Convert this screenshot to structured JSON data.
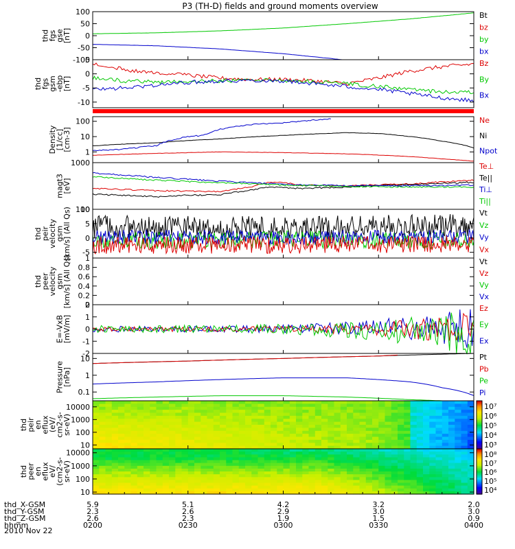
{
  "title": "P3 (TH-D) fields and ground moments overview",
  "date_label": "2010 Nov 22",
  "chart_data": [
    {
      "id": "p1",
      "type": "line",
      "ylabel": [
        "thd",
        "fgs",
        "gse",
        "[nT]"
      ],
      "ylim": [
        -100,
        100
      ],
      "yticks": [
        100,
        50,
        0,
        -50,
        -100
      ],
      "legend": [
        "Bt",
        "bz",
        "by",
        "bx"
      ],
      "series": [
        {
          "name": "by",
          "color": "#00c800",
          "x": [
            0,
            20,
            40,
            60,
            80,
            100,
            120
          ],
          "y": [
            8,
            12,
            20,
            32,
            50,
            70,
            95
          ],
          "noise": 0.3
        },
        {
          "name": "bx",
          "color": "#0000cc",
          "x": [
            0,
            20,
            40,
            60,
            75,
            80,
            100,
            120
          ],
          "y": [
            -36,
            -42,
            -55,
            -75,
            -95,
            -102,
            -102,
            -102
          ],
          "noise": 0.3
        }
      ]
    },
    {
      "id": "p2",
      "type": "line",
      "ylabel": [
        "thd",
        "fgs",
        "gsm",
        "-ebp",
        "[nT]"
      ],
      "ylim": [
        -12,
        5
      ],
      "yticks": [
        5,
        0,
        -5,
        -10
      ],
      "legend": [
        "Bz",
        "By",
        "Bx"
      ],
      "series": [
        {
          "name": "Bz",
          "color": "#dd0000",
          "x": [
            0,
            10,
            20,
            30,
            40,
            50,
            60,
            70,
            80,
            90,
            100,
            110,
            120
          ],
          "y": [
            3.5,
            1.5,
            0.5,
            -0.5,
            -1.5,
            -2.0,
            -2.0,
            -2.5,
            -3.5,
            -1.5,
            1.0,
            2.5,
            3.5
          ],
          "noise": 0.7
        },
        {
          "name": "By",
          "color": "#00c800",
          "x": [
            0,
            10,
            20,
            30,
            40,
            50,
            60,
            70,
            80,
            90,
            100,
            110,
            120
          ],
          "y": [
            -1.5,
            -2.5,
            -2.8,
            -2.8,
            -2.5,
            -2.2,
            -2.3,
            -2.8,
            -3.5,
            -4.5,
            -5.5,
            -6.5,
            -6.5
          ],
          "noise": 0.7
        },
        {
          "name": "Bx",
          "color": "#0000cc",
          "x": [
            0,
            10,
            20,
            30,
            40,
            50,
            60,
            70,
            80,
            90,
            100,
            110,
            120
          ],
          "y": [
            -5.5,
            -5.0,
            -4.0,
            -3.0,
            -2.5,
            -2.3,
            -2.5,
            -3.5,
            -4.5,
            -5.5,
            -7.0,
            -8.5,
            -9.5
          ],
          "noise": 0.7
        }
      ]
    },
    {
      "id": "p3",
      "type": "line",
      "log": true,
      "ylabel": [
        "Density",
        "[1/cc]",
        "[cm-3]"
      ],
      "ylim": [
        0.2,
        200
      ],
      "yticks": [
        100,
        10,
        1
      ],
      "legend": [
        "Ne",
        "Ni",
        "Npot"
      ],
      "series": [
        {
          "name": "Ne",
          "color": "#dd0000",
          "x": [
            0,
            20,
            40,
            60,
            80,
            100,
            110,
            120
          ],
          "y": [
            0.6,
            0.8,
            1.0,
            0.9,
            0.75,
            0.5,
            0.35,
            0.25
          ],
          "noise": 0.02
        },
        {
          "name": "Ni",
          "color": "#000000",
          "x": [
            0,
            20,
            40,
            60,
            80,
            90,
            100,
            110,
            120
          ],
          "y": [
            2.5,
            4.0,
            7.0,
            12,
            18,
            16,
            10,
            5,
            1.8
          ],
          "noise": 0.02
        },
        {
          "name": "Npot",
          "color": "#0000cc",
          "x": [
            0,
            10,
            20,
            25,
            30,
            35,
            40,
            50,
            60,
            70,
            75
          ],
          "y": [
            1.2,
            1.5,
            2.5,
            6,
            10,
            12,
            30,
            60,
            80,
            120,
            150
          ],
          "noise": 0.08
        }
      ]
    },
    {
      "id": "p4",
      "type": "line",
      "log": true,
      "ylabel": [
        "magt3",
        "[eV]"
      ],
      "ylim": [
        100,
        1000
      ],
      "yticks": [
        1000,
        100
      ],
      "legend": [
        "Te⊥",
        "Te||",
        "Ti⊥",
        "Ti||"
      ],
      "series": [
        {
          "name": "Te⊥",
          "color": "#dd0000",
          "x": [
            0,
            20,
            40,
            50,
            55,
            60,
            65,
            80,
            100,
            120
          ],
          "y": [
            280,
            250,
            240,
            300,
            380,
            380,
            330,
            320,
            350,
            420
          ],
          "noise": 0.03
        },
        {
          "name": "Te||",
          "color": "#000000",
          "x": [
            0,
            10,
            20,
            30,
            40,
            50,
            55,
            65,
            80,
            100,
            120
          ],
          "y": [
            210,
            200,
            185,
            200,
            205,
            260,
            300,
            280,
            300,
            340,
            380
          ],
          "noise": 0.03
        },
        {
          "name": "Ti⊥",
          "color": "#0000cc",
          "x": [
            0,
            20,
            40,
            60,
            80,
            100,
            120
          ],
          "y": [
            600,
            480,
            400,
            340,
            320,
            320,
            330
          ],
          "noise": 0.03
        },
        {
          "name": "Ti||",
          "color": "#00c800",
          "x": [
            0,
            20,
            40,
            60,
            80,
            100,
            120
          ],
          "y": [
            500,
            420,
            370,
            330,
            310,
            300,
            300
          ],
          "noise": 0.03
        }
      ]
    },
    {
      "id": "p5",
      "type": "line",
      "ylabel": [
        "thd",
        "peir",
        "velocity",
        "gsm",
        "[km/s] (All Qs)"
      ],
      "ylim": [
        -7,
        10
      ],
      "yticks": [
        10,
        5,
        0,
        -5
      ],
      "legend": [
        "Vt",
        "Vz",
        "Vy",
        "Vx"
      ],
      "series": [
        {
          "name": "Vt",
          "color": "#000000",
          "x": [
            0,
            60,
            120
          ],
          "y": [
            4,
            3.5,
            4.5
          ],
          "noise": 4
        },
        {
          "name": "Vz",
          "color": "#00c800",
          "x": [
            0,
            60,
            120
          ],
          "y": [
            -1,
            -0.5,
            -1
          ],
          "noise": 3
        },
        {
          "name": "Vy",
          "color": "#0000cc",
          "x": [
            0,
            60,
            120
          ],
          "y": [
            0.5,
            0,
            0.5
          ],
          "noise": 2.5
        },
        {
          "name": "Vx",
          "color": "#dd0000",
          "x": [
            0,
            60,
            120
          ],
          "y": [
            -2.5,
            -2.5,
            -2
          ],
          "noise": 3
        }
      ]
    },
    {
      "id": "p6",
      "type": "line",
      "ylabel": [
        "thd",
        "peer",
        "velocity",
        "gsm",
        "[km/s] (All Qs)"
      ],
      "ylim": [
        0,
        1
      ],
      "yticks": [
        1.0,
        0.8,
        0.6,
        0.4,
        0.2,
        0.0
      ],
      "legend": [
        "Vt",
        "Vz",
        "Vy",
        "Vx"
      ],
      "series": []
    },
    {
      "id": "p7",
      "type": "line",
      "ylabel": [
        "E=-VxB",
        "[mV/m]"
      ],
      "ylim": [
        -2,
        2
      ],
      "yticks": [
        2,
        1,
        0,
        -1,
        -2
      ],
      "legend": [
        "Ez",
        "Ey",
        "Ex"
      ],
      "series": [
        {
          "name": "Ex",
          "color": "#0000cc",
          "x": [
            0,
            60,
            100,
            120
          ],
          "y": [
            0,
            0,
            0.1,
            0.1
          ],
          "noise": 0.25,
          "grow": true
        },
        {
          "name": "Ez",
          "color": "#dd0000",
          "x": [
            0,
            60,
            120
          ],
          "y": [
            0,
            0,
            0
          ],
          "noise": 0.2,
          "grow": true
        },
        {
          "name": "Ey",
          "color": "#00c800",
          "x": [
            0,
            60,
            100,
            120
          ],
          "y": [
            0,
            0,
            -0.2,
            -0.4
          ],
          "noise": 0.3,
          "grow": true
        }
      ]
    },
    {
      "id": "p8",
      "type": "line",
      "log": true,
      "ylabel": [
        "Pressure",
        "[nPa]"
      ],
      "ylim": [
        0.03,
        20
      ],
      "yticks": [
        10,
        1.0,
        0.1
      ],
      "legend": [
        "Pt",
        "Pb",
        "Pe",
        "Pi"
      ],
      "series": [
        {
          "name": "Pt",
          "color": "#000000",
          "x": [
            0,
            30,
            60,
            90,
            120
          ],
          "y": [
            5,
            7,
            10,
            14,
            20
          ],
          "noise": 0
        },
        {
          "name": "Pb",
          "color": "#dd0000",
          "x": [
            0,
            30,
            60,
            90,
            96
          ],
          "y": [
            5,
            7,
            10,
            14,
            16
          ],
          "noise": 0
        },
        {
          "name": "Pi",
          "color": "#0000cc",
          "x": [
            0,
            20,
            40,
            60,
            80,
            100,
            110,
            120
          ],
          "y": [
            0.3,
            0.4,
            0.55,
            0.7,
            0.7,
            0.4,
            0.18,
            0.06
          ],
          "noise": 0
        },
        {
          "name": "Pe",
          "color": "#00c800",
          "x": [
            0,
            20,
            40,
            60,
            80,
            100,
            110,
            120
          ],
          "y": [
            0.04,
            0.05,
            0.06,
            0.06,
            0.05,
            0.035,
            0.03,
            0.03
          ],
          "noise": 0
        }
      ]
    },
    {
      "id": "p9",
      "type": "heatmap",
      "ylabel": [
        "thd",
        "peir",
        "en",
        "eflux",
        "(eV/",
        "cm2-s-",
        "sr-eV)"
      ],
      "ylim": [
        5,
        30000
      ],
      "yticks": [
        10000,
        1000,
        100,
        10
      ],
      "colorbar": {
        "labels": [
          "10⁷",
          "10⁶",
          "10⁵",
          "10⁴",
          "10³"
        ],
        "min_exp": 3,
        "max_exp": 7.5
      }
    },
    {
      "id": "p10",
      "type": "heatmap",
      "ylabel": [
        "thd",
        "peer",
        "en",
        "eflux",
        "eV/",
        "(cm2-s-",
        "sr-eV)"
      ],
      "ylim": [
        7,
        20000
      ],
      "yticks": [
        10000,
        1000,
        100,
        10
      ],
      "colorbar": {
        "labels": [
          "10⁸",
          "10⁷",
          "10⁶",
          "10⁵",
          "10⁴"
        ],
        "min_exp": 3.6,
        "max_exp": 8.2
      }
    }
  ],
  "x_axis": {
    "rows": [
      {
        "label": "thd_X-GSM",
        "values": [
          "5.9",
          "5.1",
          "4.2",
          "3.2",
          "2.0"
        ]
      },
      {
        "label": "thd_Y-GSM",
        "values": [
          "2.3",
          "2.6",
          "2.9",
          "3.0",
          "3.0"
        ]
      },
      {
        "label": "thd_Z-GSM",
        "values": [
          "2.6",
          "2.3",
          "1.9",
          "1.5",
          "0.9"
        ]
      },
      {
        "label": "hhmm",
        "values": [
          "0200",
          "0230",
          "0300",
          "0330",
          "0400"
        ]
      }
    ],
    "minutes": [
      0,
      30,
      60,
      90,
      120
    ]
  },
  "colors": {
    "red": "#dd0000",
    "green": "#00c800",
    "blue": "#0000cc",
    "black": "#000000",
    "separator": "#ff0000"
  }
}
